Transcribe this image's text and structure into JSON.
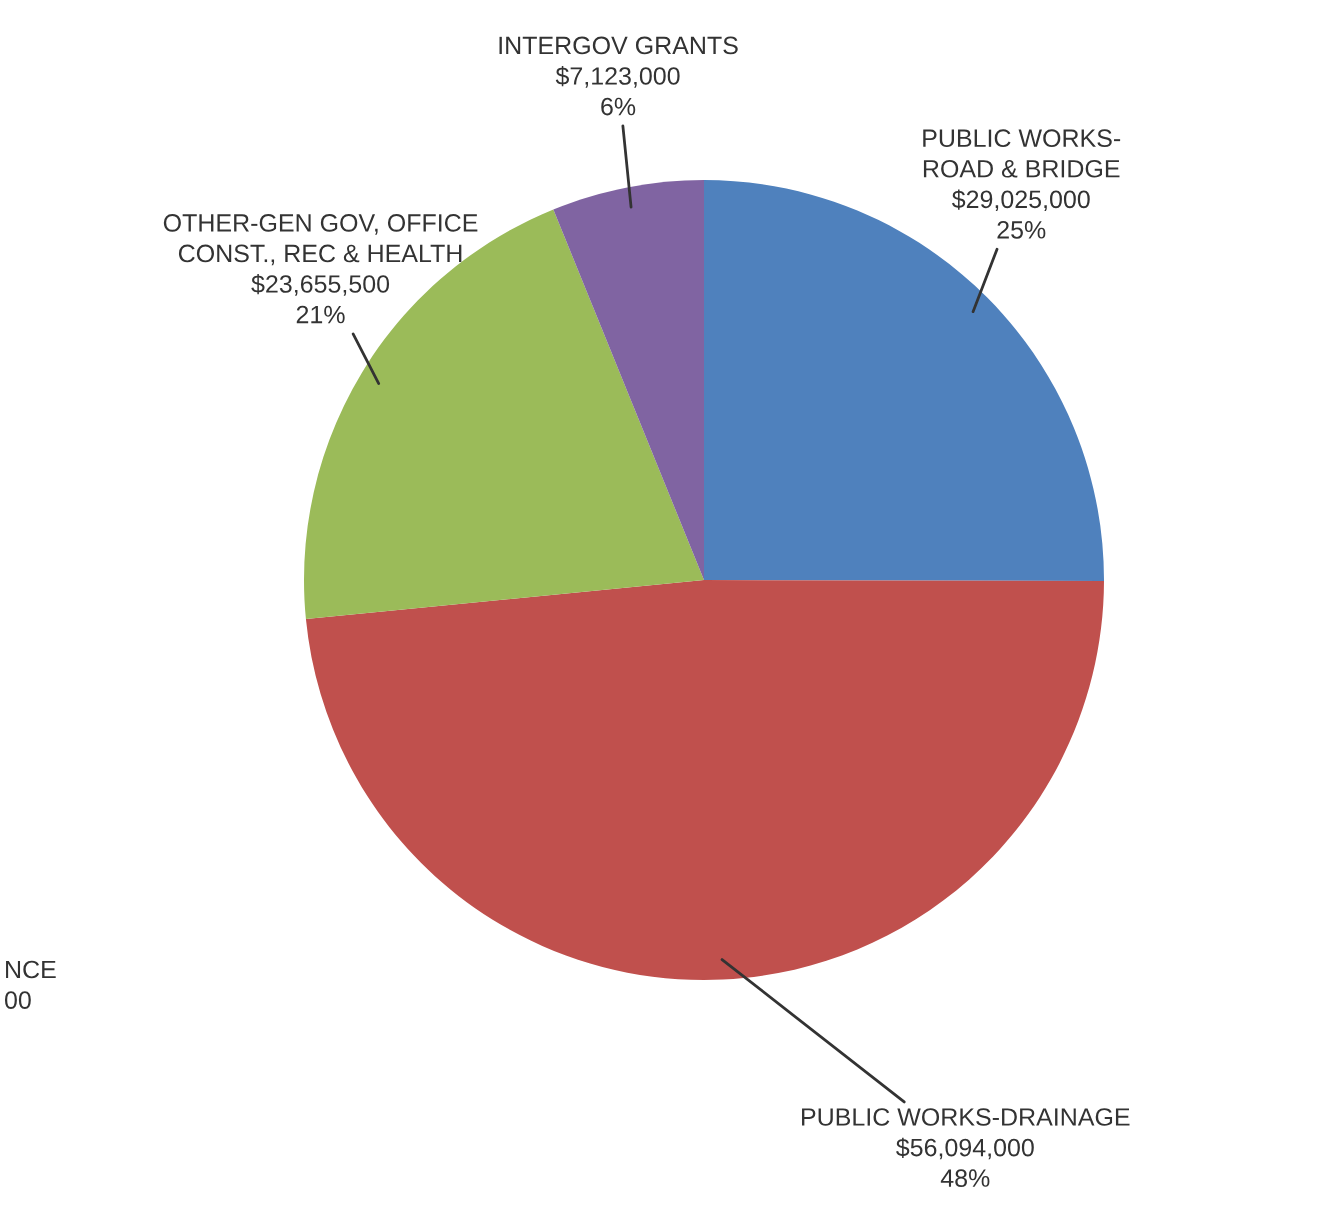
{
  "chart_data": {
    "type": "pie",
    "categories": [
      "PUBLIC WORKS-\nROAD & BRIDGE",
      "PUBLIC WORKS-DRAINAGE",
      "OTHER-GEN GOV, OFFICE\nCONST., REC & HEALTH",
      "INTERGOV GRANTS"
    ],
    "values": [
      29025000,
      56094000,
      23655500,
      7123000
    ],
    "value_labels": [
      "$29,025,000\n25%",
      "$56,094,000\n48%",
      "$23,655,500\n21%",
      "$7,123,000\n6%"
    ],
    "colors": [
      "#4f81bd",
      "#c0504d",
      "#9bbb59",
      "#8064a2"
    ],
    "annotations": [
      "NCE\n00"
    ]
  }
}
